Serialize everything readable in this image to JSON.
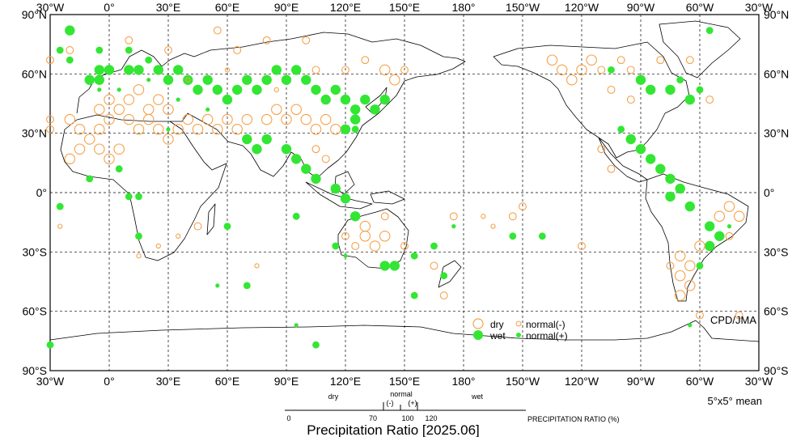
{
  "map": {
    "title": "Precipitation Ratio [2025.06]",
    "source": "CPD/JMA",
    "grid_note": "5°x5° mean",
    "lon_labels_top": [
      "30°W",
      "0°",
      "30°E",
      "60°E",
      "90°E",
      "120°E",
      "150°E",
      "180°",
      "150°W",
      "120°W",
      "90°W",
      "60°W",
      "30°W"
    ],
    "lon_labels_bottom": [
      "30°W",
      "0°",
      "30°E",
      "60°E",
      "90°E",
      "120°E",
      "150°E",
      "180°",
      "150°W",
      "120°W",
      "90°W",
      "60°W",
      "30°W"
    ],
    "lat_labels": [
      "90°N",
      "60°N",
      "30°N",
      "0°",
      "30°S",
      "60°S",
      "90°S"
    ],
    "colors": {
      "dry": "#f5a14a",
      "wet": "#33e633",
      "coast": "#000000",
      "grid": "#000000"
    }
  },
  "legend": {
    "dry": "dry",
    "wet": "wet",
    "normal_minus": "normal(-)",
    "normal_plus": "normal(+)"
  },
  "scale": {
    "dry_label": "dry",
    "normal_label": "normal",
    "normal_minus": "(-)",
    "normal_plus": "(+)",
    "wet_label": "wet",
    "ticks": [
      "0",
      "70",
      "100",
      "120"
    ],
    "axis_title": "PRECIPITATION RATIO  (%)"
  },
  "symbols": [
    {
      "lon": -20,
      "lat": 82,
      "c": "wet",
      "s": "big"
    },
    {
      "lon": -25,
      "lat": 72,
      "c": "wet",
      "s": "mid"
    },
    {
      "lon": -20,
      "lat": 67,
      "c": "wet",
      "s": "mid"
    },
    {
      "lon": -10,
      "lat": 57,
      "c": "wet",
      "s": "big"
    },
    {
      "lon": -5,
      "lat": 62,
      "c": "wet",
      "s": "big"
    },
    {
      "lon": -5,
      "lat": 57,
      "c": "wet",
      "s": "big"
    },
    {
      "lon": 0,
      "lat": 62,
      "c": "wet",
      "s": "big"
    },
    {
      "lon": -5,
      "lat": 72,
      "c": "wet",
      "s": "mid"
    },
    {
      "lon": 10,
      "lat": 62,
      "c": "wet",
      "s": "big"
    },
    {
      "lon": 15,
      "lat": 62,
      "c": "wet",
      "s": "big"
    },
    {
      "lon": 10,
      "lat": 72,
      "c": "wet",
      "s": "mid"
    },
    {
      "lon": 20,
      "lat": 67,
      "c": "wet",
      "s": "mid"
    },
    {
      "lon": 25,
      "lat": 62,
      "c": "wet",
      "s": "big"
    },
    {
      "lon": 30,
      "lat": 57,
      "c": "wet",
      "s": "big"
    },
    {
      "lon": 35,
      "lat": 62,
      "c": "wet",
      "s": "big"
    },
    {
      "lon": 40,
      "lat": 57,
      "c": "wet",
      "s": "big"
    },
    {
      "lon": 45,
      "lat": 52,
      "c": "wet",
      "s": "big"
    },
    {
      "lon": 50,
      "lat": 57,
      "c": "wet",
      "s": "big"
    },
    {
      "lon": 55,
      "lat": 52,
      "c": "wet",
      "s": "big"
    },
    {
      "lon": 60,
      "lat": 47,
      "c": "wet",
      "s": "big"
    },
    {
      "lon": 65,
      "lat": 52,
      "c": "wet",
      "s": "big"
    },
    {
      "lon": 70,
      "lat": 57,
      "c": "wet",
      "s": "big"
    },
    {
      "lon": 75,
      "lat": 52,
      "c": "wet",
      "s": "big"
    },
    {
      "lon": 80,
      "lat": 57,
      "c": "wet",
      "s": "big"
    },
    {
      "lon": 85,
      "lat": 62,
      "c": "wet",
      "s": "big"
    },
    {
      "lon": 90,
      "lat": 57,
      "c": "wet",
      "s": "big"
    },
    {
      "lon": 95,
      "lat": 62,
      "c": "wet",
      "s": "big"
    },
    {
      "lon": 100,
      "lat": 57,
      "c": "wet",
      "s": "big"
    },
    {
      "lon": 105,
      "lat": 52,
      "c": "wet",
      "s": "big"
    },
    {
      "lon": 110,
      "lat": 47,
      "c": "wet",
      "s": "big"
    },
    {
      "lon": 115,
      "lat": 52,
      "c": "wet",
      "s": "big"
    },
    {
      "lon": 120,
      "lat": 47,
      "c": "wet",
      "s": "big"
    },
    {
      "lon": 125,
      "lat": 42,
      "c": "wet",
      "s": "big"
    },
    {
      "lon": 130,
      "lat": 47,
      "c": "wet",
      "s": "big"
    },
    {
      "lon": 135,
      "lat": 42,
      "c": "wet",
      "s": "big"
    },
    {
      "lon": 140,
      "lat": 47,
      "c": "wet",
      "s": "big"
    },
    {
      "lon": 125,
      "lat": 37,
      "c": "wet",
      "s": "big"
    },
    {
      "lon": 120,
      "lat": 32,
      "c": "wet",
      "s": "big"
    },
    {
      "lon": 125,
      "lat": 32,
      "c": "wet",
      "s": "mid"
    },
    {
      "lon": 70,
      "lat": 27,
      "c": "wet",
      "s": "big"
    },
    {
      "lon": 75,
      "lat": 22,
      "c": "wet",
      "s": "big"
    },
    {
      "lon": 80,
      "lat": 27,
      "c": "wet",
      "s": "big"
    },
    {
      "lon": 90,
      "lat": 22,
      "c": "wet",
      "s": "big"
    },
    {
      "lon": 95,
      "lat": 17,
      "c": "wet",
      "s": "big"
    },
    {
      "lon": 100,
      "lat": 12,
      "c": "wet",
      "s": "big"
    },
    {
      "lon": 105,
      "lat": 7,
      "c": "wet",
      "s": "big"
    },
    {
      "lon": 115,
      "lat": 2,
      "c": "wet",
      "s": "big"
    },
    {
      "lon": 120,
      "lat": -3,
      "c": "wet",
      "s": "big"
    },
    {
      "lon": -25,
      "lat": -7,
      "c": "wet",
      "s": "mid"
    },
    {
      "lon": -10,
      "lat": 7,
      "c": "wet",
      "s": "mid"
    },
    {
      "lon": 5,
      "lat": 12,
      "c": "wet",
      "s": "mid"
    },
    {
      "lon": 10,
      "lat": -2,
      "c": "wet",
      "s": "mid"
    },
    {
      "lon": 15,
      "lat": -2,
      "c": "wet",
      "s": "mid"
    },
    {
      "lon": 15,
      "lat": -22,
      "c": "wet",
      "s": "mid"
    },
    {
      "lon": 60,
      "lat": -17,
      "c": "wet",
      "s": "mid"
    },
    {
      "lon": 70,
      "lat": -47,
      "c": "wet",
      "s": "mid"
    },
    {
      "lon": 95,
      "lat": -12,
      "c": "wet",
      "s": "mid"
    },
    {
      "lon": 125,
      "lat": -12,
      "c": "wet",
      "s": "big"
    },
    {
      "lon": 115,
      "lat": -27,
      "c": "wet",
      "s": "mid"
    },
    {
      "lon": 140,
      "lat": -37,
      "c": "wet",
      "s": "big"
    },
    {
      "lon": 145,
      "lat": -37,
      "c": "wet",
      "s": "big"
    },
    {
      "lon": 155,
      "lat": -32,
      "c": "wet",
      "s": "mid"
    },
    {
      "lon": 165,
      "lat": -27,
      "c": "wet",
      "s": "mid"
    },
    {
      "lon": 170,
      "lat": -42,
      "c": "wet",
      "s": "mid"
    },
    {
      "lon": 155,
      "lat": -52,
      "c": "wet",
      "s": "mid"
    },
    {
      "lon": 105,
      "lat": -77,
      "c": "wet",
      "s": "mid"
    },
    {
      "lon": -30,
      "lat": -77,
      "c": "wet",
      "s": "mid"
    },
    {
      "lon": -140,
      "lat": -22,
      "c": "wet",
      "s": "mid"
    },
    {
      "lon": -155,
      "lat": -22,
      "c": "wet",
      "s": "mid"
    },
    {
      "lon": -100,
      "lat": 32,
      "c": "wet",
      "s": "mid"
    },
    {
      "lon": -95,
      "lat": 27,
      "c": "wet",
      "s": "big"
    },
    {
      "lon": -90,
      "lat": 22,
      "c": "wet",
      "s": "big"
    },
    {
      "lon": -85,
      "lat": 17,
      "c": "wet",
      "s": "big"
    },
    {
      "lon": -80,
      "lat": 12,
      "c": "wet",
      "s": "big"
    },
    {
      "lon": -75,
      "lat": 7,
      "c": "wet",
      "s": "big"
    },
    {
      "lon": -70,
      "lat": 2,
      "c": "wet",
      "s": "big"
    },
    {
      "lon": -75,
      "lat": -2,
      "c": "wet",
      "s": "big"
    },
    {
      "lon": -65,
      "lat": -7,
      "c": "wet",
      "s": "big"
    },
    {
      "lon": -55,
      "lat": -17,
      "c": "wet",
      "s": "big"
    },
    {
      "lon": -50,
      "lat": -22,
      "c": "wet",
      "s": "big"
    },
    {
      "lon": -55,
      "lat": -27,
      "c": "wet",
      "s": "big"
    },
    {
      "lon": -60,
      "lat": -37,
      "c": "wet",
      "s": "mid"
    },
    {
      "lon": -90,
      "lat": 57,
      "c": "wet",
      "s": "big"
    },
    {
      "lon": -85,
      "lat": 52,
      "c": "wet",
      "s": "big"
    },
    {
      "lon": -75,
      "lat": 52,
      "c": "wet",
      "s": "big"
    },
    {
      "lon": -65,
      "lat": 47,
      "c": "wet",
      "s": "big"
    },
    {
      "lon": -60,
      "lat": 52,
      "c": "wet",
      "s": "mid"
    },
    {
      "lon": -70,
      "lat": 57,
      "c": "wet",
      "s": "mid"
    },
    {
      "lon": -105,
      "lat": 62,
      "c": "wet",
      "s": "mid"
    },
    {
      "lon": -55,
      "lat": 82,
      "c": "wet",
      "s": "mid"
    },
    {
      "lon": -5,
      "lat": 52,
      "c": "wet",
      "s": "np"
    },
    {
      "lon": 5,
      "lat": 52,
      "c": "wet",
      "s": "np"
    },
    {
      "lon": 20,
      "lat": 57,
      "c": "wet",
      "s": "np"
    },
    {
      "lon": 35,
      "lat": 47,
      "c": "wet",
      "s": "np"
    },
    {
      "lon": 50,
      "lat": 42,
      "c": "wet",
      "s": "np"
    },
    {
      "lon": 30,
      "lat": 32,
      "c": "wet",
      "s": "np"
    },
    {
      "lon": 55,
      "lat": -47,
      "c": "wet",
      "s": "np"
    },
    {
      "lon": -45,
      "lat": -17,
      "c": "wet",
      "s": "np"
    },
    {
      "lon": -65,
      "lat": -67,
      "c": "wet",
      "s": "np"
    },
    {
      "lon": 175,
      "lat": -17,
      "c": "wet",
      "s": "np"
    },
    {
      "lon": 95,
      "lat": -67,
      "c": "wet",
      "s": "np"
    },
    {
      "lon": 120,
      "lat": -32,
      "c": "wet",
      "s": "np"
    },
    {
      "lon": -20,
      "lat": 37,
      "c": "dry",
      "s": "big"
    },
    {
      "lon": -15,
      "lat": 32,
      "c": "dry",
      "s": "big"
    },
    {
      "lon": -10,
      "lat": 27,
      "c": "dry",
      "s": "big"
    },
    {
      "lon": -5,
      "lat": 32,
      "c": "dry",
      "s": "big"
    },
    {
      "lon": 0,
      "lat": 37,
      "c": "dry",
      "s": "big"
    },
    {
      "lon": 5,
      "lat": 42,
      "c": "dry",
      "s": "big"
    },
    {
      "lon": 10,
      "lat": 37,
      "c": "dry",
      "s": "big"
    },
    {
      "lon": 15,
      "lat": 32,
      "c": "dry",
      "s": "big"
    },
    {
      "lon": 20,
      "lat": 37,
      "c": "dry",
      "s": "big"
    },
    {
      "lon": 25,
      "lat": 32,
      "c": "dry",
      "s": "big"
    },
    {
      "lon": 30,
      "lat": 27,
      "c": "dry",
      "s": "big"
    },
    {
      "lon": 35,
      "lat": 32,
      "c": "dry",
      "s": "big"
    },
    {
      "lon": 40,
      "lat": 37,
      "c": "dry",
      "s": "big"
    },
    {
      "lon": 45,
      "lat": 32,
      "c": "dry",
      "s": "big"
    },
    {
      "lon": 50,
      "lat": 37,
      "c": "dry",
      "s": "big"
    },
    {
      "lon": 55,
      "lat": 32,
      "c": "dry",
      "s": "big"
    },
    {
      "lon": -5,
      "lat": 22,
      "c": "dry",
      "s": "big"
    },
    {
      "lon": 0,
      "lat": 17,
      "c": "dry",
      "s": "big"
    },
    {
      "lon": 5,
      "lat": 22,
      "c": "dry",
      "s": "big"
    },
    {
      "lon": -20,
      "lat": 17,
      "c": "dry",
      "s": "big"
    },
    {
      "lon": -15,
      "lat": 22,
      "c": "dry",
      "s": "big"
    },
    {
      "lon": -5,
      "lat": 42,
      "c": "dry",
      "s": "big"
    },
    {
      "lon": 0,
      "lat": 47,
      "c": "dry",
      "s": "big"
    },
    {
      "lon": 10,
      "lat": 47,
      "c": "dry",
      "s": "big"
    },
    {
      "lon": 20,
      "lat": 42,
      "c": "dry",
      "s": "big"
    },
    {
      "lon": 30,
      "lat": 42,
      "c": "dry",
      "s": "big"
    },
    {
      "lon": 25,
      "lat": 47,
      "c": "dry",
      "s": "big"
    },
    {
      "lon": 15,
      "lat": 52,
      "c": "dry",
      "s": "big"
    },
    {
      "lon": -30,
      "lat": 37,
      "c": "dry",
      "s": "mid"
    },
    {
      "lon": -20,
      "lat": 72,
      "c": "dry",
      "s": "mid"
    },
    {
      "lon": 10,
      "lat": 77,
      "c": "dry",
      "s": "mid"
    },
    {
      "lon": 30,
      "lat": 72,
      "c": "dry",
      "s": "mid"
    },
    {
      "lon": 55,
      "lat": 82,
      "c": "dry",
      "s": "mid"
    },
    {
      "lon": 65,
      "lat": 72,
      "c": "dry",
      "s": "mid"
    },
    {
      "lon": 80,
      "lat": 77,
      "c": "dry",
      "s": "mid"
    },
    {
      "lon": 100,
      "lat": 77,
      "c": "dry",
      "s": "mid"
    },
    {
      "lon": 60,
      "lat": 37,
      "c": "dry",
      "s": "big"
    },
    {
      "lon": 65,
      "lat": 32,
      "c": "dry",
      "s": "big"
    },
    {
      "lon": 70,
      "lat": 37,
      "c": "dry",
      "s": "big"
    },
    {
      "lon": 80,
      "lat": 37,
      "c": "dry",
      "s": "big"
    },
    {
      "lon": 85,
      "lat": 42,
      "c": "dry",
      "s": "big"
    },
    {
      "lon": 90,
      "lat": 37,
      "c": "dry",
      "s": "big"
    },
    {
      "lon": 95,
      "lat": 42,
      "c": "dry",
      "s": "big"
    },
    {
      "lon": 100,
      "lat": 37,
      "c": "dry",
      "s": "big"
    },
    {
      "lon": 105,
      "lat": 32,
      "c": "dry",
      "s": "big"
    },
    {
      "lon": 110,
      "lat": 37,
      "c": "dry",
      "s": "big"
    },
    {
      "lon": 115,
      "lat": 32,
      "c": "dry",
      "s": "big"
    },
    {
      "lon": 105,
      "lat": 22,
      "c": "dry",
      "s": "mid"
    },
    {
      "lon": 110,
      "lat": 17,
      "c": "dry",
      "s": "mid"
    },
    {
      "lon": 140,
      "lat": 62,
      "c": "dry",
      "s": "big"
    },
    {
      "lon": 145,
      "lat": 57,
      "c": "dry",
      "s": "big"
    },
    {
      "lon": 150,
      "lat": 62,
      "c": "dry",
      "s": "mid"
    },
    {
      "lon": 130,
      "lat": 67,
      "c": "dry",
      "s": "mid"
    },
    {
      "lon": 120,
      "lat": 62,
      "c": "dry",
      "s": "mid"
    },
    {
      "lon": 105,
      "lat": 62,
      "c": "dry",
      "s": "mid"
    },
    {
      "lon": 130,
      "lat": -22,
      "c": "dry",
      "s": "big"
    },
    {
      "lon": 135,
      "lat": -27,
      "c": "dry",
      "s": "big"
    },
    {
      "lon": 130,
      "lat": -17,
      "c": "dry",
      "s": "big"
    },
    {
      "lon": 140,
      "lat": -22,
      "c": "dry",
      "s": "big"
    },
    {
      "lon": 125,
      "lat": -27,
      "c": "dry",
      "s": "mid"
    },
    {
      "lon": 120,
      "lat": -22,
      "c": "dry",
      "s": "mid"
    },
    {
      "lon": 140,
      "lat": -12,
      "c": "dry",
      "s": "mid"
    },
    {
      "lon": 150,
      "lat": -27,
      "c": "dry",
      "s": "mid"
    },
    {
      "lon": 165,
      "lat": -37,
      "c": "dry",
      "s": "mid"
    },
    {
      "lon": 170,
      "lat": -52,
      "c": "dry",
      "s": "mid"
    },
    {
      "lon": 175,
      "lat": -12,
      "c": "dry",
      "s": "mid"
    },
    {
      "lon": -155,
      "lat": -12,
      "c": "dry",
      "s": "mid"
    },
    {
      "lon": -150,
      "lat": -7,
      "c": "dry",
      "s": "mid"
    },
    {
      "lon": -120,
      "lat": -27,
      "c": "dry",
      "s": "mid"
    },
    {
      "lon": -70,
      "lat": -32,
      "c": "dry",
      "s": "big"
    },
    {
      "lon": -65,
      "lat": -37,
      "c": "dry",
      "s": "big"
    },
    {
      "lon": -70,
      "lat": -42,
      "c": "dry",
      "s": "big"
    },
    {
      "lon": -65,
      "lat": -47,
      "c": "dry",
      "s": "big"
    },
    {
      "lon": -70,
      "lat": -52,
      "c": "dry",
      "s": "big"
    },
    {
      "lon": -75,
      "lat": -37,
      "c": "dry",
      "s": "mid"
    },
    {
      "lon": -60,
      "lat": -27,
      "c": "dry",
      "s": "big"
    },
    {
      "lon": -45,
      "lat": -7,
      "c": "dry",
      "s": "big"
    },
    {
      "lon": -40,
      "lat": -12,
      "c": "dry",
      "s": "big"
    },
    {
      "lon": -50,
      "lat": -12,
      "c": "dry",
      "s": "big"
    },
    {
      "lon": -45,
      "lat": -22,
      "c": "dry",
      "s": "mid"
    },
    {
      "lon": -60,
      "lat": -62,
      "c": "dry",
      "s": "mid"
    },
    {
      "lon": -40,
      "lat": -62,
      "c": "dry",
      "s": "mid"
    },
    {
      "lon": -135,
      "lat": 67,
      "c": "dry",
      "s": "big"
    },
    {
      "lon": -130,
      "lat": 62,
      "c": "dry",
      "s": "big"
    },
    {
      "lon": -125,
      "lat": 57,
      "c": "dry",
      "s": "big"
    },
    {
      "lon": -120,
      "lat": 62,
      "c": "dry",
      "s": "big"
    },
    {
      "lon": -115,
      "lat": 67,
      "c": "dry",
      "s": "big"
    },
    {
      "lon": -110,
      "lat": 62,
      "c": "dry",
      "s": "mid"
    },
    {
      "lon": -100,
      "lat": 67,
      "c": "dry",
      "s": "mid"
    },
    {
      "lon": -95,
      "lat": 62,
      "c": "dry",
      "s": "mid"
    },
    {
      "lon": -105,
      "lat": 52,
      "c": "dry",
      "s": "mid"
    },
    {
      "lon": -95,
      "lat": 47,
      "c": "dry",
      "s": "mid"
    },
    {
      "lon": -80,
      "lat": 67,
      "c": "dry",
      "s": "mid"
    },
    {
      "lon": -65,
      "lat": 67,
      "c": "dry",
      "s": "mid"
    },
    {
      "lon": -55,
      "lat": 47,
      "c": "dry",
      "s": "mid"
    },
    {
      "lon": -30,
      "lat": 67,
      "c": "dry",
      "s": "mid"
    },
    {
      "lon": -30,
      "lat": 32,
      "c": "dry",
      "s": "mid"
    },
    {
      "lon": -110,
      "lat": 22,
      "c": "dry",
      "s": "mid"
    },
    {
      "lon": -105,
      "lat": 12,
      "c": "dry",
      "s": "mid"
    },
    {
      "lon": 15,
      "lat": -32,
      "c": "dry",
      "s": "np"
    },
    {
      "lon": 25,
      "lat": -27,
      "c": "dry",
      "s": "np"
    },
    {
      "lon": 35,
      "lat": -22,
      "c": "dry",
      "s": "np"
    },
    {
      "lon": 45,
      "lat": -17,
      "c": "dry",
      "s": "mid"
    },
    {
      "lon": -25,
      "lat": -17,
      "c": "dry",
      "s": "np"
    },
    {
      "lon": 75,
      "lat": -37,
      "c": "dry",
      "s": "np"
    },
    {
      "lon": 40,
      "lat": 57,
      "c": "dry",
      "s": "np"
    },
    {
      "lon": 60,
      "lat": 62,
      "c": "dry",
      "s": "np"
    },
    {
      "lon": 85,
      "lat": 52,
      "c": "dry",
      "s": "np"
    },
    {
      "lon": -170,
      "lat": -12,
      "c": "dry",
      "s": "np"
    },
    {
      "lon": -165,
      "lat": -17,
      "c": "dry",
      "s": "np"
    }
  ]
}
